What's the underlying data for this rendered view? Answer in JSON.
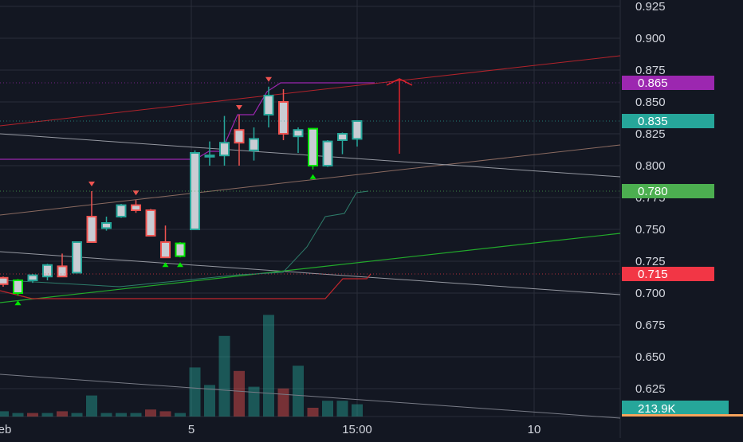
{
  "chart_data": {
    "type": "candlestick",
    "price_axis": {
      "ticks": [
        "0.925",
        "0.900",
        "0.875",
        "0.850",
        "0.825",
        "0.800",
        "0.775",
        "0.750",
        "0.725",
        "0.700",
        "0.675",
        "0.650",
        "0.625"
      ],
      "range": [
        0.61,
        0.93
      ]
    },
    "time_axis": {
      "ticks": [
        "eb",
        "5",
        "15:00",
        "10"
      ]
    },
    "price_labels": [
      {
        "value": 0.865,
        "text": "0.865",
        "color": "#9c27b0"
      },
      {
        "value": 0.835,
        "text": "0.835",
        "color": "#26a69a"
      },
      {
        "value": 0.78,
        "text": "0.780",
        "color": "#4caf50"
      },
      {
        "value": 0.715,
        "text": "0.715",
        "color": "#f23645"
      }
    ],
    "volume_label": {
      "text": "213.9K",
      "color": "#26a69a"
    },
    "candles": [
      {
        "o": 0.712,
        "h": 0.713,
        "l": 0.705,
        "c": 0.707,
        "color": "#ef5350"
      },
      {
        "o": 0.7,
        "h": 0.711,
        "l": 0.698,
        "c": 0.71,
        "color": "#00e600"
      },
      {
        "o": 0.71,
        "h": 0.715,
        "l": 0.708,
        "c": 0.714,
        "color": "#26a69a"
      },
      {
        "o": 0.713,
        "h": 0.723,
        "l": 0.71,
        "c": 0.722,
        "color": "#26a69a"
      },
      {
        "o": 0.721,
        "h": 0.731,
        "l": 0.713,
        "c": 0.713,
        "color": "#ef5350"
      },
      {
        "o": 0.716,
        "h": 0.74,
        "l": 0.716,
        "c": 0.74,
        "color": "#26a69a"
      },
      {
        "o": 0.76,
        "h": 0.78,
        "l": 0.74,
        "c": 0.74,
        "color": "#ef5350"
      },
      {
        "o": 0.751,
        "h": 0.76,
        "l": 0.749,
        "c": 0.755,
        "color": "#26a69a"
      },
      {
        "o": 0.76,
        "h": 0.77,
        "l": 0.759,
        "c": 0.769,
        "color": "#26a69a"
      },
      {
        "o": 0.769,
        "h": 0.773,
        "l": 0.763,
        "c": 0.765,
        "color": "#ef5350"
      },
      {
        "o": 0.765,
        "h": 0.766,
        "l": 0.745,
        "c": 0.745,
        "color": "#ef5350"
      },
      {
        "o": 0.74,
        "h": 0.753,
        "l": 0.728,
        "c": 0.728,
        "color": "#ef5350"
      },
      {
        "o": 0.729,
        "h": 0.74,
        "l": 0.728,
        "c": 0.739,
        "color": "#00e600"
      },
      {
        "o": 0.75,
        "h": 0.812,
        "l": 0.75,
        "c": 0.81,
        "color": "#26a69a"
      },
      {
        "o": 0.807,
        "h": 0.819,
        "l": 0.8,
        "c": 0.808,
        "color": "#26a69a"
      },
      {
        "o": 0.808,
        "h": 0.839,
        "l": 0.8,
        "c": 0.818,
        "color": "#26a69a"
      },
      {
        "o": 0.828,
        "h": 0.84,
        "l": 0.8,
        "c": 0.818,
        "color": "#ef5350"
      },
      {
        "o": 0.821,
        "h": 0.83,
        "l": 0.804,
        "c": 0.812,
        "color": "#26a69a"
      },
      {
        "o": 0.84,
        "h": 0.862,
        "l": 0.83,
        "c": 0.855,
        "color": "#26a69a"
      },
      {
        "o": 0.85,
        "h": 0.86,
        "l": 0.82,
        "c": 0.825,
        "color": "#ef5350"
      },
      {
        "o": 0.823,
        "h": 0.83,
        "l": 0.81,
        "c": 0.828,
        "color": "#26a69a"
      },
      {
        "o": 0.829,
        "h": 0.829,
        "l": 0.797,
        "c": 0.8,
        "color": "#00e600"
      },
      {
        "o": 0.8,
        "h": 0.82,
        "l": 0.799,
        "c": 0.819,
        "color": "#26a69a"
      },
      {
        "o": 0.82,
        "h": 0.826,
        "l": 0.809,
        "c": 0.825,
        "color": "#26a69a"
      },
      {
        "o": 0.821,
        "h": 0.835,
        "l": 0.815,
        "c": 0.835,
        "color": "#26a69a"
      }
    ],
    "volumes": [
      {
        "v": 3,
        "color": "#26a69a"
      },
      {
        "v": 2,
        "color": "#26a69a"
      },
      {
        "v": 2,
        "color": "#ef5350"
      },
      {
        "v": 2,
        "color": "#26a69a"
      },
      {
        "v": 3,
        "color": "#ef5350"
      },
      {
        "v": 2,
        "color": "#26a69a"
      },
      {
        "v": 12,
        "color": "#26a69a"
      },
      {
        "v": 2,
        "color": "#26a69a"
      },
      {
        "v": 2,
        "color": "#26a69a"
      },
      {
        "v": 2,
        "color": "#26a69a"
      },
      {
        "v": 4,
        "color": "#ef5350"
      },
      {
        "v": 3,
        "color": "#ef5350"
      },
      {
        "v": 2,
        "color": "#26a69a"
      },
      {
        "v": 28,
        "color": "#26a69a"
      },
      {
        "v": 18,
        "color": "#26a69a"
      },
      {
        "v": 46,
        "color": "#26a69a"
      },
      {
        "v": 26,
        "color": "#ef5350"
      },
      {
        "v": 17,
        "color": "#26a69a"
      },
      {
        "v": 58,
        "color": "#26a69a"
      },
      {
        "v": 16,
        "color": "#ef5350"
      },
      {
        "v": 29,
        "color": "#26a69a"
      },
      {
        "v": 5,
        "color": "#ef5350"
      },
      {
        "v": 9,
        "color": "#26a69a"
      },
      {
        "v": 9,
        "color": "#26a69a"
      },
      {
        "v": 7,
        "color": "#26a69a"
      }
    ],
    "signals": [
      {
        "candle": 1,
        "dir": "up"
      },
      {
        "candle": 6,
        "dir": "down"
      },
      {
        "candle": 9,
        "dir": "down"
      },
      {
        "candle": 11,
        "dir": "up"
      },
      {
        "candle": 12,
        "dir": "up"
      },
      {
        "candle": 16,
        "dir": "down"
      },
      {
        "candle": 18,
        "dir": "down"
      },
      {
        "candle": 21,
        "dir": "up"
      }
    ],
    "colors": {
      "background": "#131722",
      "grid": "#2a2e39",
      "bull": "#26a69a",
      "bear": "#ef5350",
      "signal_bull": "#00e600",
      "stop_line": "#f23645",
      "purple_line": "#9c27b0",
      "green_line": "#4caf50",
      "axis_text": "#d1d4dc"
    }
  }
}
